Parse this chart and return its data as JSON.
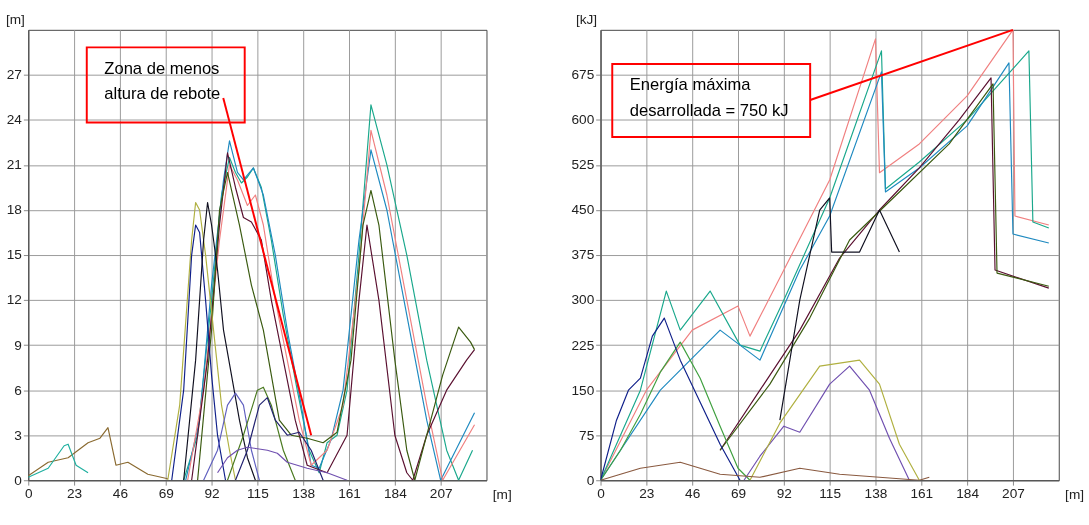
{
  "chart_data": [
    {
      "type": "line",
      "ylabel": "[m]",
      "xlabel": "[m]",
      "xlim": [
        0,
        230
      ],
      "ylim": [
        0,
        30
      ],
      "xticks": [
        0,
        23,
        46,
        69,
        92,
        115,
        138,
        161,
        184,
        207
      ],
      "yticks": [
        0,
        3,
        6,
        9,
        12,
        15,
        18,
        21,
        24,
        27
      ],
      "grid": true,
      "legend": false,
      "marker": "none",
      "line_style": "solid",
      "annotations": [
        {
          "text": "Zona de menos\naltura de rebote",
          "x": 142,
          "y": 3
        }
      ],
      "series": [
        {
          "color": "#1aa88c",
          "x": [
            78,
            85,
            92,
            97,
            101,
            104,
            107,
            110,
            113,
            117,
            122,
            128,
            135,
            141,
            146,
            150,
            155,
            160,
            166,
            172,
            180,
            190,
            200,
            210,
            216,
            223
          ],
          "values": [
            0,
            3,
            12,
            19,
            21.5,
            20.5,
            19.8,
            20.2,
            20.8,
            19.5,
            16,
            11,
            6,
            2,
            0.5,
            2.5,
            3,
            6,
            15,
            25,
            21,
            15,
            8,
            2,
            0,
            2
          ]
        },
        {
          "color": "#1f8ac0",
          "x": [
            79,
            86,
            92,
            98,
            101,
            105,
            108,
            113,
            118,
            124,
            130,
            137,
            142,
            146,
            152,
            158,
            166,
            172,
            180,
            190,
            200,
            207,
            224
          ],
          "values": [
            0,
            4,
            13,
            20,
            22.6,
            20.5,
            20,
            20.8,
            19,
            15,
            10,
            5,
            1,
            0.8,
            2.7,
            6,
            16,
            22,
            18,
            11,
            4,
            0,
            4.5
          ]
        },
        {
          "color": "#f08080",
          "x": [
            80,
            88,
            96,
            101,
            105,
            110,
            114,
            118,
            124,
            130,
            136,
            142,
            150,
            158,
            166,
            172,
            180,
            190,
            200,
            208,
            224
          ],
          "values": [
            0,
            6,
            16,
            21,
            20,
            18.3,
            19,
            17,
            12,
            8,
            4,
            1,
            2,
            5,
            14,
            23.3,
            19,
            12,
            5,
            0,
            3.7
          ]
        },
        {
          "color": "#5a1030",
          "x": [
            82,
            90,
            96,
            100,
            104,
            108,
            112,
            117,
            122,
            128,
            134,
            140,
            150,
            160,
            166,
            170,
            176,
            184,
            190,
            193,
            200,
            210,
            220,
            224
          ],
          "values": [
            0,
            8,
            17,
            21.8,
            19.5,
            17.5,
            17.2,
            16,
            12,
            8,
            4,
            1,
            0.5,
            3,
            12,
            17,
            12,
            3,
            0.5,
            0,
            3,
            6,
            8,
            8.7
          ]
        },
        {
          "color": "#3a5a10",
          "x": [
            85,
            92,
            96,
            100,
            106,
            112,
            118,
            122,
            126,
            132,
            140,
            148,
            155,
            162,
            168,
            172,
            176,
            184,
            190,
            194,
            200,
            208,
            216,
            222,
            224
          ],
          "values": [
            0,
            10,
            18,
            20.5,
            17,
            13,
            10,
            7,
            4,
            3,
            2.8,
            2.5,
            3.2,
            8,
            17,
            19.3,
            17,
            8,
            2,
            0,
            3,
            7,
            10.2,
            9.2,
            8.7
          ]
        },
        {
          "color": "#b0b040",
          "x": [
            70,
            76,
            82,
            84,
            86,
            89,
            93,
            97,
            101,
            104
          ],
          "values": [
            0,
            5,
            16,
            18.5,
            18,
            15,
            10,
            5,
            2,
            0
          ]
        },
        {
          "color": "#10208a",
          "x": [
            72,
            78,
            82,
            84,
            86,
            89,
            92,
            95,
            99
          ],
          "values": [
            0,
            6,
            15,
            17,
            16.5,
            12,
            7,
            3,
            0
          ]
        },
        {
          "color": "#101020",
          "x": [
            78,
            84,
            88,
            90,
            92,
            95,
            98,
            102,
            106,
            110,
            114
          ],
          "values": [
            0,
            8,
            16,
            18.5,
            17,
            14,
            10,
            7,
            4,
            1.5,
            0
          ]
        },
        {
          "color": "#6060c0",
          "x": [
            88,
            95,
            100,
            104,
            108,
            112,
            116
          ],
          "values": [
            0,
            2,
            5,
            5.8,
            5,
            2,
            0
          ]
        },
        {
          "color": "#4a7a20",
          "x": [
            100,
            108,
            115,
            118,
            122,
            128,
            134
          ],
          "values": [
            0,
            3,
            6,
            6.2,
            5,
            2,
            0
          ]
        },
        {
          "color": "#202070",
          "x": [
            104,
            110,
            116,
            120,
            124,
            130,
            136,
            142,
            148
          ],
          "values": [
            0,
            2,
            5,
            5.5,
            4,
            3,
            3.2,
            2,
            0
          ]
        },
        {
          "color": "#8a6a30",
          "x": [
            0,
            10,
            20,
            30,
            36,
            40,
            44,
            50,
            60,
            70
          ],
          "values": [
            0.3,
            1.2,
            1.5,
            2.5,
            2.8,
            3.5,
            1,
            1.2,
            0.4,
            0.1
          ]
        },
        {
          "color": "#20b0a0",
          "x": [
            0,
            10,
            18,
            20,
            24,
            30
          ],
          "values": [
            0.2,
            0.8,
            2.3,
            2.4,
            1,
            0.5
          ]
        },
        {
          "color": "#7050b0",
          "x": [
            95,
            100,
            105,
            110,
            115,
            120,
            125,
            130,
            140,
            150,
            160
          ],
          "values": [
            0.5,
            1.5,
            2,
            2.2,
            2.1,
            2,
            1.8,
            1.2,
            0.8,
            0.5,
            0
          ]
        }
      ]
    },
    {
      "type": "line",
      "ylabel": "[kJ]",
      "xlabel": "[m]",
      "xlim": [
        0,
        230
      ],
      "ylim": [
        0,
        750
      ],
      "xticks": [
        0,
        23,
        46,
        69,
        92,
        115,
        138,
        161,
        184,
        207
      ],
      "yticks": [
        0,
        75,
        150,
        225,
        300,
        375,
        450,
        525,
        600,
        675
      ],
      "grid": true,
      "legend": false,
      "marker": "none",
      "line_style": "solid",
      "annotations": [
        {
          "text": "Energía máxima\ndesarrollada = 750 kJ",
          "x": 207,
          "y": 750
        }
      ],
      "series": [
        {
          "color": "#f08080",
          "x": [
            0,
            23,
            46,
            69,
            75,
            92,
            115,
            138,
            140,
            160,
            184,
            207,
            208,
            225
          ],
          "values": [
            0,
            150,
            250,
            290,
            240,
            350,
            500,
            735,
            512,
            560,
            640,
            750,
            440,
            425
          ]
        },
        {
          "color": "#1aa88c",
          "x": [
            0,
            20,
            33,
            40,
            55,
            70,
            80,
            92,
            115,
            141,
            143,
            160,
            184,
            215,
            217,
            225
          ],
          "values": [
            0,
            150,
            315,
            250,
            315,
            225,
            215,
            300,
            470,
            715,
            485,
            530,
            600,
            715,
            430,
            420
          ]
        },
        {
          "color": "#1f8ac0",
          "x": [
            0,
            30,
            60,
            80,
            100,
            115,
            141,
            143,
            160,
            184,
            205,
            207,
            225
          ],
          "values": [
            0,
            150,
            250,
            200,
            350,
            440,
            680,
            480,
            520,
            590,
            695,
            410,
            395
          ]
        },
        {
          "color": "#5a1030",
          "x": [
            60,
            80,
            100,
            120,
            140,
            160,
            180,
            196,
            198,
            225
          ],
          "values": [
            50,
            150,
            250,
            370,
            450,
            520,
            600,
            670,
            350,
            320
          ]
        },
        {
          "color": "#3a5a10",
          "x": [
            60,
            85,
            105,
            125,
            150,
            175,
            197,
            199,
            225
          ],
          "values": [
            50,
            160,
            270,
            400,
            480,
            560,
            660,
            345,
            323
          ]
        },
        {
          "color": "#40a040",
          "x": [
            0,
            10,
            20,
            30,
            40,
            50,
            60,
            69,
            75
          ],
          "values": [
            0,
            50,
            110,
            180,
            230,
            170,
            90,
            20,
            0
          ]
        },
        {
          "color": "#10208a",
          "x": [
            0,
            8,
            14,
            20,
            26,
            32,
            40,
            50,
            60,
            70
          ],
          "values": [
            0,
            100,
            150,
            170,
            240,
            270,
            200,
            130,
            60,
            0
          ]
        },
        {
          "color": "#7050b0",
          "x": [
            72,
            80,
            92,
            100,
            115,
            125,
            135,
            145,
            155
          ],
          "values": [
            0,
            40,
            90,
            80,
            160,
            190,
            150,
            70,
            0
          ]
        },
        {
          "color": "#b0b040",
          "x": [
            75,
            90,
            110,
            120,
            130,
            140,
            150,
            160
          ],
          "values": [
            0,
            95,
            190,
            195,
            200,
            160,
            60,
            0
          ]
        },
        {
          "color": "#101020",
          "x": [
            90,
            100,
            110,
            115,
            116,
            130,
            140,
            150
          ],
          "values": [
            100,
            300,
            450,
            470,
            380,
            380,
            450,
            380
          ]
        },
        {
          "color": "#8a5a40",
          "x": [
            0,
            20,
            40,
            60,
            80,
            100,
            120,
            140,
            160,
            165
          ],
          "values": [
            0,
            20,
            30,
            10,
            5,
            20,
            10,
            5,
            0,
            5
          ]
        }
      ]
    }
  ]
}
